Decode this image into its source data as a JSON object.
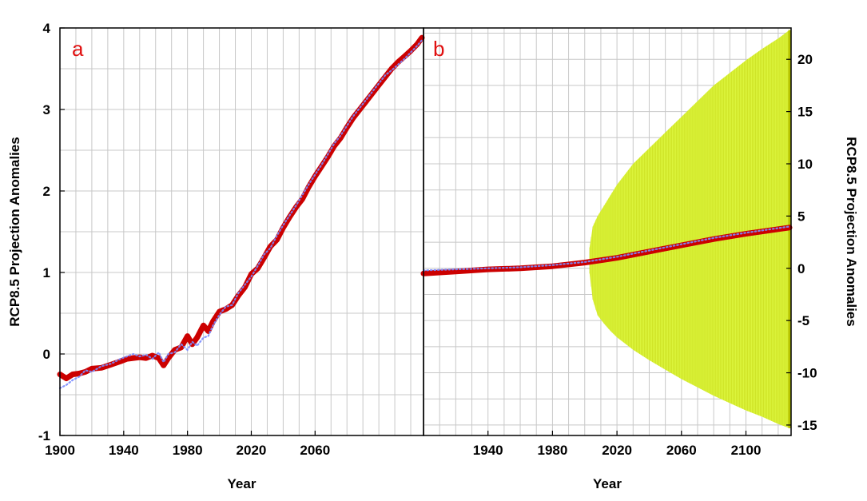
{
  "chart_data": [
    {
      "panel": "a",
      "type": "line",
      "xlabel": "Year",
      "ylabel": "RCP8.5 Projection Anomalies",
      "xlim": [
        1900,
        2128
      ],
      "ylim": [
        -1,
        4
      ],
      "xticks": [
        1900,
        1940,
        1980,
        2020,
        2060
      ],
      "yticks": [
        -1,
        0,
        1,
        2,
        3,
        4
      ],
      "grid": true,
      "colors": {
        "main": "#cc0000",
        "dots": "#7a8cff"
      },
      "series": [
        {
          "style": "thick-line",
          "x": [
            1900,
            1904,
            1908,
            1912,
            1916,
            1920,
            1926,
            1932,
            1938,
            1942,
            1946,
            1950,
            1954,
            1958,
            1962,
            1965,
            1968,
            1972,
            1976,
            1980,
            1983,
            1986,
            1990,
            1993,
            1996,
            2000,
            2004,
            2008,
            2012,
            2016,
            2020,
            2024,
            2028,
            2032,
            2036,
            2040,
            2044,
            2048,
            2052,
            2056,
            2060,
            2064,
            2068,
            2072,
            2076,
            2080,
            2084,
            2088,
            2092,
            2096,
            2100,
            2104,
            2108,
            2112,
            2116,
            2120,
            2124,
            2127
          ],
          "y": [
            -0.25,
            -0.3,
            -0.25,
            -0.24,
            -0.22,
            -0.18,
            -0.17,
            -0.13,
            -0.09,
            -0.06,
            -0.05,
            -0.04,
            -0.05,
            -0.02,
            -0.05,
            -0.14,
            -0.05,
            0.05,
            0.08,
            0.22,
            0.12,
            0.2,
            0.35,
            0.28,
            0.4,
            0.52,
            0.55,
            0.6,
            0.72,
            0.82,
            0.98,
            1.05,
            1.18,
            1.32,
            1.4,
            1.55,
            1.68,
            1.8,
            1.9,
            2.05,
            2.18,
            2.3,
            2.42,
            2.55,
            2.65,
            2.78,
            2.9,
            3.0,
            3.1,
            3.2,
            3.3,
            3.4,
            3.5,
            3.58,
            3.65,
            3.72,
            3.8,
            3.88
          ]
        },
        {
          "style": "dotted",
          "x": [
            1900,
            1904,
            1908,
            1912,
            1916,
            1920,
            1926,
            1932,
            1938,
            1942,
            1946,
            1950,
            1954,
            1958,
            1962,
            1965,
            1968,
            1972,
            1976,
            1980,
            1983,
            1986,
            1990,
            1993,
            1996,
            2000,
            2004,
            2008,
            2012,
            2016,
            2020,
            2024,
            2028,
            2032,
            2036,
            2040,
            2044,
            2048,
            2052,
            2056,
            2060,
            2064,
            2068,
            2072,
            2076,
            2080,
            2084,
            2088,
            2092,
            2096,
            2100,
            2104,
            2108,
            2112,
            2116,
            2120,
            2124,
            2127
          ],
          "y": [
            -0.42,
            -0.38,
            -0.32,
            -0.28,
            -0.2,
            -0.22,
            -0.15,
            -0.12,
            -0.06,
            -0.03,
            0.0,
            -0.03,
            -0.01,
            -0.06,
            0.02,
            -0.1,
            0.0,
            0.02,
            0.12,
            0.05,
            0.15,
            0.1,
            0.2,
            0.22,
            0.35,
            0.48,
            0.58,
            0.6,
            0.75,
            0.85,
            0.95,
            1.08,
            1.22,
            1.3,
            1.45,
            1.58,
            1.7,
            1.82,
            1.95,
            2.08,
            2.2,
            2.32,
            2.45,
            2.58,
            2.68,
            2.8,
            2.92,
            3.02,
            3.12,
            3.22,
            3.32,
            3.42,
            3.48,
            3.55,
            3.62,
            3.7,
            3.78,
            3.85
          ]
        }
      ]
    },
    {
      "panel": "b",
      "type": "line",
      "xlabel": "Year",
      "ylabel": "RCP8.5 Projection Anomalies",
      "xlim": [
        1900,
        2128
      ],
      "ylim": [
        -16,
        23
      ],
      "xticks": [
        1940,
        1980,
        2020,
        2060,
        2100
      ],
      "yticks": [
        -15,
        -10,
        -5,
        0,
        5,
        10,
        15,
        20
      ],
      "grid": true,
      "colors": {
        "main": "#cc0000",
        "dots": "#7a8cff",
        "band": "#dcf53c",
        "band_edge": "#b7c400"
      },
      "series": [
        {
          "style": "thick-line",
          "x": [
            1900,
            1920,
            1940,
            1960,
            1980,
            2000,
            2020,
            2040,
            2060,
            2080,
            2100,
            2127
          ],
          "y": [
            -0.5,
            -0.3,
            -0.1,
            0.0,
            0.2,
            0.55,
            1.0,
            1.6,
            2.2,
            2.8,
            3.3,
            3.9
          ]
        },
        {
          "style": "dotted",
          "x": [
            1900,
            1920,
            1940,
            1960,
            1980,
            2000,
            2020,
            2040,
            2060,
            2080,
            2100,
            2127
          ],
          "y": [
            -0.2,
            -0.1,
            0.0,
            0.1,
            0.3,
            0.6,
            1.1,
            1.7,
            2.3,
            2.9,
            3.4,
            4.0
          ]
        },
        {
          "style": "band",
          "x": [
            2003,
            2005,
            2008,
            2012,
            2016,
            2020,
            2030,
            2040,
            2050,
            2060,
            2070,
            2080,
            2090,
            2100,
            2110,
            2120,
            2127
          ],
          "upper": [
            2.0,
            4.0,
            5.0,
            6.0,
            7.0,
            8.0,
            10.0,
            11.5,
            13.0,
            14.5,
            16.0,
            17.5,
            18.7,
            19.9,
            21.0,
            22.0,
            22.8
          ],
          "lower": [
            -0.5,
            -3.0,
            -4.5,
            -5.3,
            -6.0,
            -6.6,
            -7.8,
            -8.8,
            -9.7,
            -10.6,
            -11.4,
            -12.2,
            -12.9,
            -13.6,
            -14.2,
            -14.9,
            -15.3
          ]
        }
      ]
    }
  ]
}
